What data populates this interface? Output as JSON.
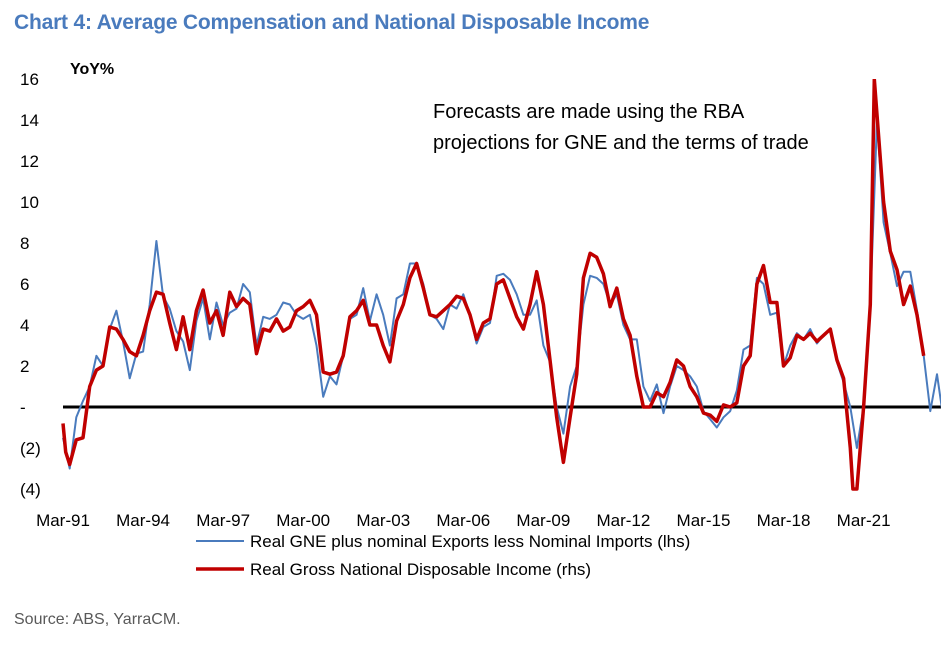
{
  "title": "Chart 4: Average Compensation and National Disposable Income",
  "source": "Source: ABS, YarraCM.",
  "chart_data": {
    "type": "line",
    "ylabel": "YoY%",
    "ylim": [
      -4,
      16
    ],
    "y_ticks": [
      16,
      14,
      12,
      10,
      8,
      6,
      4,
      2,
      0,
      -2,
      -4
    ],
    "y_tick_labels": [
      "16",
      "14",
      "12",
      "10",
      "8",
      "6",
      "4",
      "2",
      "-",
      "(2)",
      "(4)"
    ],
    "x_tick_labels": [
      "Mar-91",
      "Mar-94",
      "Mar-97",
      "Mar-00",
      "Mar-03",
      "Mar-06",
      "Mar-09",
      "Mar-12",
      "Mar-15",
      "Mar-18",
      "Mar-21"
    ],
    "x_tick_years": [
      1991,
      1994,
      1997,
      2000,
      2003,
      2006,
      2009,
      2012,
      2015,
      2018,
      2021
    ],
    "x_range": [
      1991,
      2023.75
    ],
    "zero_line": true,
    "annotation": [
      "Forecasts are made using the RBA",
      "projections for GNE and the terms of trade"
    ],
    "series": [
      {
        "name": "Real GNE plus nominal Exports less Nominal Imports (lhs)",
        "color": "#4a7bbd",
        "points": [
          [
            1991.0,
            -1.5
          ],
          [
            1991.25,
            -3.0
          ],
          [
            1991.5,
            -0.5
          ],
          [
            1991.75,
            0.3
          ],
          [
            1992.0,
            1.0
          ],
          [
            1992.25,
            2.5
          ],
          [
            1992.5,
            2.0
          ],
          [
            1992.75,
            3.8
          ],
          [
            1993.0,
            4.7
          ],
          [
            1993.25,
            3.2
          ],
          [
            1993.5,
            1.4
          ],
          [
            1993.75,
            2.6
          ],
          [
            1994.0,
            2.7
          ],
          [
            1994.25,
            5.0
          ],
          [
            1994.5,
            8.1
          ],
          [
            1994.75,
            5.4
          ],
          [
            1995.0,
            4.8
          ],
          [
            1995.25,
            3.7
          ],
          [
            1995.5,
            3.2
          ],
          [
            1995.75,
            1.8
          ],
          [
            1996.0,
            4.2
          ],
          [
            1996.25,
            5.3
          ],
          [
            1996.5,
            3.3
          ],
          [
            1996.75,
            5.1
          ],
          [
            1997.0,
            4.0
          ],
          [
            1997.25,
            4.6
          ],
          [
            1997.5,
            4.8
          ],
          [
            1997.75,
            6.0
          ],
          [
            1998.0,
            5.6
          ],
          [
            1998.25,
            3.0
          ],
          [
            1998.5,
            4.4
          ],
          [
            1998.75,
            4.3
          ],
          [
            1999.0,
            4.5
          ],
          [
            1999.25,
            5.1
          ],
          [
            1999.5,
            5.0
          ],
          [
            1999.75,
            4.5
          ],
          [
            2000.0,
            4.3
          ],
          [
            2000.25,
            4.5
          ],
          [
            2000.5,
            3.0
          ],
          [
            2000.75,
            0.5
          ],
          [
            2001.0,
            1.5
          ],
          [
            2001.25,
            1.1
          ],
          [
            2001.5,
            2.5
          ],
          [
            2001.75,
            4.3
          ],
          [
            2002.0,
            4.5
          ],
          [
            2002.25,
            5.8
          ],
          [
            2002.5,
            4.2
          ],
          [
            2002.75,
            5.5
          ],
          [
            2003.0,
            4.5
          ],
          [
            2003.25,
            3.0
          ],
          [
            2003.5,
            5.3
          ],
          [
            2003.75,
            5.5
          ],
          [
            2004.0,
            7.0
          ],
          [
            2004.25,
            7.0
          ],
          [
            2004.5,
            6.0
          ],
          [
            2004.75,
            4.5
          ],
          [
            2005.0,
            4.3
          ],
          [
            2005.25,
            3.8
          ],
          [
            2005.5,
            5.0
          ],
          [
            2005.75,
            4.8
          ],
          [
            2006.0,
            5.5
          ],
          [
            2006.25,
            4.5
          ],
          [
            2006.5,
            3.1
          ],
          [
            2006.75,
            3.9
          ],
          [
            2007.0,
            4.1
          ],
          [
            2007.25,
            6.4
          ],
          [
            2007.5,
            6.5
          ],
          [
            2007.75,
            6.2
          ],
          [
            2008.0,
            5.5
          ],
          [
            2008.25,
            4.5
          ],
          [
            2008.5,
            4.5
          ],
          [
            2008.75,
            5.2
          ],
          [
            2009.0,
            3.0
          ],
          [
            2009.25,
            2.2
          ],
          [
            2009.5,
            0.0
          ],
          [
            2009.75,
            -1.3
          ],
          [
            2010.0,
            1.0
          ],
          [
            2010.25,
            2.0
          ],
          [
            2010.5,
            5.0
          ],
          [
            2010.75,
            6.4
          ],
          [
            2011.0,
            6.3
          ],
          [
            2011.25,
            6.0
          ],
          [
            2011.5,
            5.0
          ],
          [
            2011.75,
            5.5
          ],
          [
            2012.0,
            4.0
          ],
          [
            2012.25,
            3.3
          ],
          [
            2012.5,
            3.3
          ],
          [
            2012.75,
            1.0
          ],
          [
            2013.0,
            0.3
          ],
          [
            2013.25,
            1.1
          ],
          [
            2013.5,
            -0.3
          ],
          [
            2013.75,
            1.0
          ],
          [
            2014.0,
            2.0
          ],
          [
            2014.25,
            1.8
          ],
          [
            2014.5,
            1.5
          ],
          [
            2014.75,
            1.0
          ],
          [
            2015.0,
            -0.2
          ],
          [
            2015.25,
            -0.6
          ],
          [
            2015.5,
            -1.0
          ],
          [
            2015.75,
            -0.5
          ],
          [
            2016.0,
            -0.2
          ],
          [
            2016.25,
            0.8
          ],
          [
            2016.5,
            2.8
          ],
          [
            2016.75,
            3.0
          ],
          [
            2017.0,
            6.3
          ],
          [
            2017.25,
            6.0
          ],
          [
            2017.5,
            4.5
          ],
          [
            2017.75,
            4.6
          ],
          [
            2018.0,
            2.0
          ],
          [
            2018.25,
            3.0
          ],
          [
            2018.5,
            3.6
          ],
          [
            2018.75,
            3.3
          ],
          [
            2019.0,
            3.8
          ],
          [
            2019.25,
            3.1
          ],
          [
            2019.5,
            3.5
          ],
          [
            2019.75,
            3.8
          ],
          [
            2020.0,
            2.2
          ],
          [
            2020.25,
            1.2
          ],
          [
            2020.5,
            0.0
          ],
          [
            2020.75,
            -2.0
          ],
          [
            2021.0,
            0.0
          ],
          [
            2021.25,
            5.0
          ],
          [
            2021.5,
            14.0
          ],
          [
            2021.75,
            9.0
          ],
          [
            2022.0,
            7.5
          ],
          [
            2022.25,
            5.9
          ],
          [
            2022.5,
            6.6
          ],
          [
            2022.75,
            6.6
          ],
          [
            2023.0,
            4.7
          ],
          [
            2023.25,
            2.5
          ],
          [
            2023.5,
            -0.2
          ],
          [
            2023.75,
            1.6
          ],
          [
            2023.95,
            -0.2
          ]
        ]
      },
      {
        "name": "Real Gross National Disposable Income (rhs)",
        "color": "#c00000",
        "points": [
          [
            1991.0,
            -0.8
          ],
          [
            1991.1,
            -2.2
          ],
          [
            1991.25,
            -2.8
          ],
          [
            1991.5,
            -1.6
          ],
          [
            1991.75,
            -1.5
          ],
          [
            1992.0,
            1.0
          ],
          [
            1992.25,
            1.8
          ],
          [
            1992.5,
            2.0
          ],
          [
            1992.75,
            3.9
          ],
          [
            1993.0,
            3.8
          ],
          [
            1993.25,
            3.3
          ],
          [
            1993.5,
            2.7
          ],
          [
            1993.75,
            2.5
          ],
          [
            1994.0,
            3.5
          ],
          [
            1994.25,
            4.7
          ],
          [
            1994.5,
            5.6
          ],
          [
            1994.75,
            5.5
          ],
          [
            1995.0,
            4.1
          ],
          [
            1995.25,
            2.8
          ],
          [
            1995.5,
            4.4
          ],
          [
            1995.75,
            2.8
          ],
          [
            1996.0,
            4.7
          ],
          [
            1996.25,
            5.7
          ],
          [
            1996.5,
            4.1
          ],
          [
            1996.75,
            4.7
          ],
          [
            1997.0,
            3.5
          ],
          [
            1997.25,
            5.6
          ],
          [
            1997.5,
            4.9
          ],
          [
            1997.75,
            5.3
          ],
          [
            1998.0,
            5.0
          ],
          [
            1998.25,
            2.6
          ],
          [
            1998.5,
            3.8
          ],
          [
            1998.75,
            3.7
          ],
          [
            1999.0,
            4.3
          ],
          [
            1999.25,
            3.7
          ],
          [
            1999.5,
            3.9
          ],
          [
            1999.75,
            4.7
          ],
          [
            2000.0,
            4.9
          ],
          [
            2000.25,
            5.2
          ],
          [
            2000.5,
            4.5
          ],
          [
            2000.75,
            1.7
          ],
          [
            2001.0,
            1.6
          ],
          [
            2001.25,
            1.7
          ],
          [
            2001.5,
            2.5
          ],
          [
            2001.75,
            4.4
          ],
          [
            2002.0,
            4.7
          ],
          [
            2002.25,
            5.2
          ],
          [
            2002.5,
            4.0
          ],
          [
            2002.75,
            4.0
          ],
          [
            2003.0,
            3.0
          ],
          [
            2003.25,
            2.2
          ],
          [
            2003.5,
            4.2
          ],
          [
            2003.75,
            5.0
          ],
          [
            2004.0,
            6.3
          ],
          [
            2004.25,
            7.0
          ],
          [
            2004.5,
            5.8
          ],
          [
            2004.75,
            4.5
          ],
          [
            2005.0,
            4.4
          ],
          [
            2005.25,
            4.7
          ],
          [
            2005.5,
            5.0
          ],
          [
            2005.75,
            5.4
          ],
          [
            2006.0,
            5.3
          ],
          [
            2006.25,
            4.5
          ],
          [
            2006.5,
            3.3
          ],
          [
            2006.75,
            4.1
          ],
          [
            2007.0,
            4.3
          ],
          [
            2007.25,
            6.0
          ],
          [
            2007.5,
            6.2
          ],
          [
            2007.75,
            5.3
          ],
          [
            2008.0,
            4.4
          ],
          [
            2008.25,
            3.8
          ],
          [
            2008.5,
            5.0
          ],
          [
            2008.75,
            6.6
          ],
          [
            2009.0,
            5.0
          ],
          [
            2009.25,
            2.3
          ],
          [
            2009.5,
            -0.5
          ],
          [
            2009.75,
            -2.7
          ],
          [
            2010.0,
            -0.5
          ],
          [
            2010.25,
            1.6
          ],
          [
            2010.5,
            6.3
          ],
          [
            2010.75,
            7.5
          ],
          [
            2011.0,
            7.3
          ],
          [
            2011.25,
            6.5
          ],
          [
            2011.5,
            4.9
          ],
          [
            2011.75,
            5.8
          ],
          [
            2012.0,
            4.3
          ],
          [
            2012.25,
            3.5
          ],
          [
            2012.5,
            1.5
          ],
          [
            2012.75,
            0.0
          ],
          [
            2013.0,
            0.0
          ],
          [
            2013.25,
            0.7
          ],
          [
            2013.5,
            0.5
          ],
          [
            2013.75,
            1.2
          ],
          [
            2014.0,
            2.3
          ],
          [
            2014.25,
            2.0
          ],
          [
            2014.5,
            1.0
          ],
          [
            2014.75,
            0.5
          ],
          [
            2015.0,
            -0.3
          ],
          [
            2015.25,
            -0.4
          ],
          [
            2015.5,
            -0.7
          ],
          [
            2015.75,
            0.1
          ],
          [
            2016.0,
            0.0
          ],
          [
            2016.25,
            0.2
          ],
          [
            2016.5,
            2.0
          ],
          [
            2016.75,
            2.5
          ],
          [
            2017.0,
            6.0
          ],
          [
            2017.25,
            6.9
          ],
          [
            2017.5,
            5.1
          ],
          [
            2017.75,
            5.1
          ],
          [
            2018.0,
            2.0
          ],
          [
            2018.25,
            2.4
          ],
          [
            2018.5,
            3.5
          ],
          [
            2018.75,
            3.3
          ],
          [
            2019.0,
            3.6
          ],
          [
            2019.25,
            3.2
          ],
          [
            2019.5,
            3.5
          ],
          [
            2019.75,
            3.8
          ],
          [
            2020.0,
            2.3
          ],
          [
            2020.25,
            1.4
          ],
          [
            2020.5,
            -2.0
          ],
          [
            2020.6,
            -4.0
          ],
          [
            2020.75,
            -4.0
          ],
          [
            2021.0,
            0.0
          ],
          [
            2021.25,
            5.0
          ],
          [
            2021.4,
            16.0
          ],
          [
            2021.75,
            10.0
          ],
          [
            2022.0,
            7.6
          ],
          [
            2022.25,
            6.7
          ],
          [
            2022.5,
            5.0
          ],
          [
            2022.75,
            5.9
          ],
          [
            2023.0,
            4.5
          ],
          [
            2023.25,
            2.5
          ]
        ]
      }
    ],
    "legend": [
      {
        "label": "Real GNE plus nominal Exports less Nominal Imports (lhs)",
        "color": "#4a7bbd"
      },
      {
        "label": "Real Gross National Disposable Income (rhs)",
        "color": "#c00000"
      }
    ]
  }
}
